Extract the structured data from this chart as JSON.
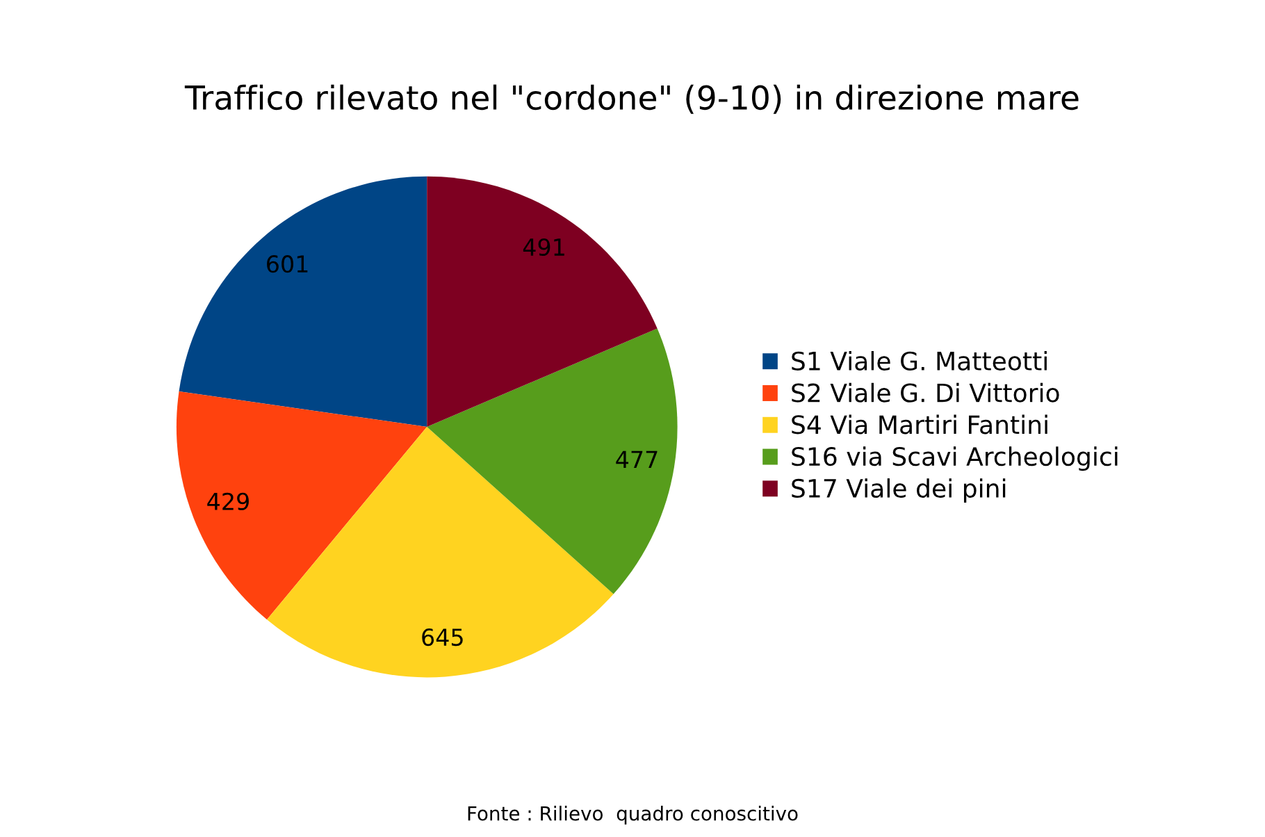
{
  "chart_data": {
    "type": "pie",
    "title": "Traffico rilevato nel \"cordone\" (9-10) in direzione mare",
    "categories": [
      "S1 Viale G. Matteotti",
      "S2 Viale G. Di Vittorio",
      "S4 Via Martiri Fantini",
      "S16 via Scavi Archeologici",
      "S17 Viale dei pini"
    ],
    "values": [
      601,
      429,
      645,
      477,
      491
    ],
    "colors": [
      "#004586",
      "#ff420e",
      "#ffd320",
      "#579d1c",
      "#7e0021"
    ],
    "data_labels": true,
    "legend": "right",
    "annotations": [
      "Fonte : Rilievo  quadro conoscitivo"
    ]
  }
}
